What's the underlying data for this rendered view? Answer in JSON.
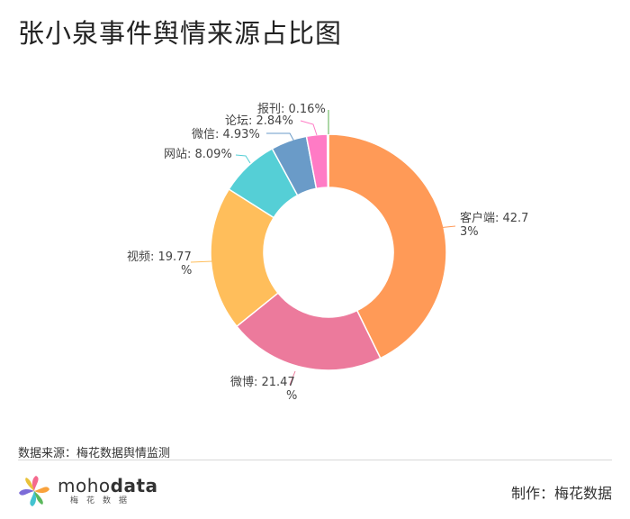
{
  "header": {
    "title": "张小泉事件舆情来源占比图"
  },
  "chart_data": {
    "type": "pie",
    "variant": "donut",
    "categories": [
      "客户端",
      "微博",
      "视频",
      "网站",
      "微信",
      "论坛",
      "报刊"
    ],
    "values": [
      42.73,
      21.47,
      19.77,
      8.09,
      4.93,
      2.84,
      0.16
    ],
    "labels": [
      [
        "客户端: 42.7",
        "3%"
      ],
      [
        "微博: 21.47",
        "%"
      ],
      [
        "视频: 19.77",
        "%"
      ],
      [
        "网站: 8.09%"
      ],
      [
        "微信: 4.93%"
      ],
      [
        "论坛: 2.84%"
      ],
      [
        "报刊: 0.16%"
      ]
    ],
    "colors": [
      "#FF9A57",
      "#EC7A9C",
      "#FFBE5B",
      "#55CFD6",
      "#6A9BC8",
      "#FF7BC5",
      "#5AAF4C"
    ],
    "start_angle_deg": 0,
    "direction": "clockwise"
  },
  "footer": {
    "source": "数据来源：梅花数据舆情监测",
    "logo_prefix": "moho",
    "logo_bold": "data",
    "logo_sub": "梅花数据",
    "credit": "制作：梅花数据"
  }
}
